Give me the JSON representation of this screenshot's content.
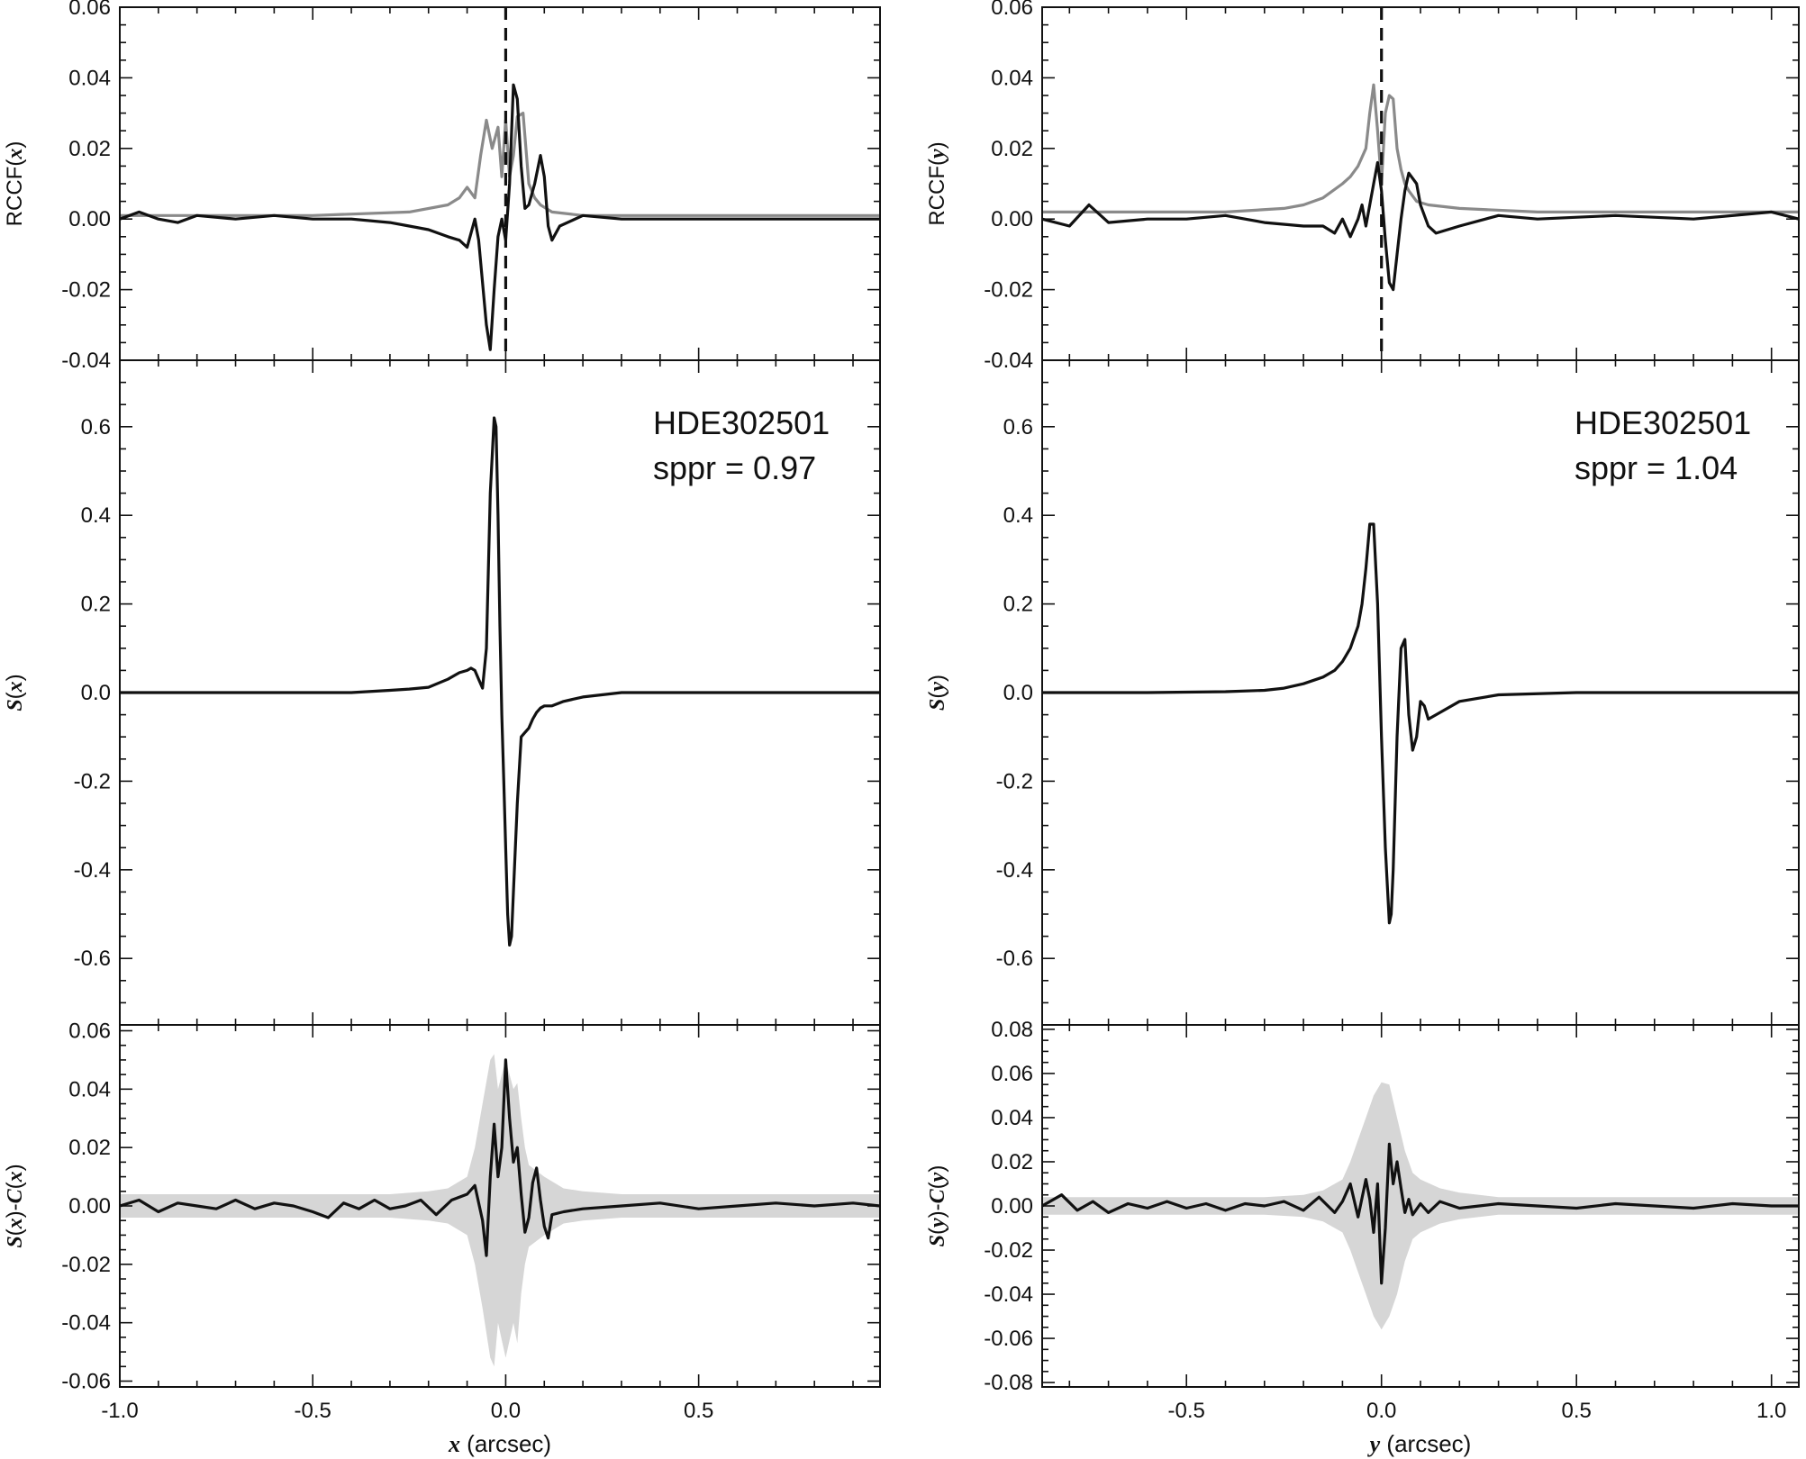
{
  "chart_data": [
    {
      "panel": "top-left",
      "type": "line",
      "ylabel_parts": [
        "RCCF(",
        "x",
        ")"
      ],
      "xlim": [
        -1.0,
        0.97
      ],
      "ylim": [
        -0.04,
        0.06
      ],
      "yticks": [
        "-0.04",
        "-0.02",
        "0.00",
        "0.02",
        "0.04",
        "0.06"
      ],
      "ytick_values": [
        -0.04,
        -0.02,
        0.0,
        0.02,
        0.04,
        0.06
      ],
      "vline_x": 0.0,
      "series": [
        {
          "color": "#8a8a8a",
          "x": [
            -1.0,
            -0.8,
            -0.5,
            -0.25,
            -0.15,
            -0.12,
            -0.1,
            -0.08,
            -0.065,
            -0.05,
            -0.035,
            -0.02,
            -0.01,
            0.0,
            0.01,
            0.02,
            0.03,
            0.045,
            0.06,
            0.075,
            0.09,
            0.12,
            0.2,
            0.5,
            0.97
          ],
          "y": [
            0.001,
            0.001,
            0.001,
            0.002,
            0.004,
            0.006,
            0.009,
            0.006,
            0.018,
            0.028,
            0.02,
            0.026,
            0.012,
            0.028,
            0.012,
            0.018,
            0.029,
            0.03,
            0.01,
            0.006,
            0.004,
            0.002,
            0.001,
            0.001,
            0.001
          ]
        },
        {
          "color": "#111111",
          "x": [
            -1.0,
            -0.95,
            -0.9,
            -0.85,
            -0.8,
            -0.7,
            -0.6,
            -0.5,
            -0.4,
            -0.3,
            -0.25,
            -0.2,
            -0.15,
            -0.12,
            -0.1,
            -0.09,
            -0.08,
            -0.07,
            -0.05,
            -0.04,
            -0.03,
            -0.02,
            -0.01,
            0.0,
            0.01,
            0.02,
            0.03,
            0.04,
            0.05,
            0.06,
            0.075,
            0.09,
            0.1,
            0.11,
            0.12,
            0.14,
            0.2,
            0.3,
            0.5,
            0.7,
            0.97
          ],
          "y": [
            0.0,
            0.002,
            0.0,
            -0.001,
            0.001,
            0.0,
            0.001,
            0.0,
            0.0,
            -0.001,
            -0.002,
            -0.003,
            -0.005,
            -0.006,
            -0.008,
            -0.004,
            0.0,
            -0.006,
            -0.03,
            -0.037,
            -0.02,
            -0.005,
            0.0,
            -0.006,
            0.01,
            0.038,
            0.034,
            0.015,
            0.003,
            0.004,
            0.01,
            0.018,
            0.012,
            -0.002,
            -0.006,
            -0.002,
            0.001,
            0.0,
            0.0,
            0.0,
            0.0
          ]
        }
      ]
    },
    {
      "panel": "top-right",
      "type": "line",
      "ylabel_parts": [
        "RCCF(",
        "y",
        ")"
      ],
      "xlim": [
        -0.87,
        1.07
      ],
      "ylim": [
        -0.04,
        0.06
      ],
      "yticks": [
        "-0.04",
        "-0.02",
        "0.00",
        "0.02",
        "0.04",
        "0.06"
      ],
      "ytick_values": [
        -0.04,
        -0.02,
        0.0,
        0.02,
        0.04,
        0.06
      ],
      "vline_x": 0.0,
      "series": [
        {
          "color": "#8a8a8a",
          "x": [
            -0.87,
            -0.6,
            -0.4,
            -0.25,
            -0.2,
            -0.15,
            -0.1,
            -0.08,
            -0.06,
            -0.04,
            -0.03,
            -0.02,
            -0.01,
            0.0,
            0.01,
            0.02,
            0.03,
            0.04,
            0.05,
            0.06,
            0.07,
            0.09,
            0.12,
            0.2,
            0.4,
            0.7,
            1.07
          ],
          "y": [
            0.002,
            0.002,
            0.002,
            0.003,
            0.004,
            0.006,
            0.01,
            0.012,
            0.015,
            0.02,
            0.03,
            0.038,
            0.025,
            0.01,
            0.03,
            0.035,
            0.034,
            0.02,
            0.014,
            0.01,
            0.008,
            0.005,
            0.004,
            0.003,
            0.002,
            0.002,
            0.002
          ]
        },
        {
          "color": "#111111",
          "x": [
            -0.87,
            -0.8,
            -0.75,
            -0.7,
            -0.6,
            -0.5,
            -0.4,
            -0.3,
            -0.2,
            -0.15,
            -0.12,
            -0.1,
            -0.08,
            -0.06,
            -0.05,
            -0.04,
            -0.03,
            -0.02,
            -0.01,
            0.0,
            0.01,
            0.02,
            0.03,
            0.04,
            0.05,
            0.06,
            0.07,
            0.09,
            0.1,
            0.12,
            0.14,
            0.2,
            0.3,
            0.4,
            0.6,
            0.8,
            1.0,
            1.07
          ],
          "y": [
            0.0,
            -0.002,
            0.004,
            -0.001,
            0.0,
            0.0,
            0.001,
            -0.001,
            -0.002,
            -0.002,
            -0.004,
            0.0,
            -0.005,
            0.0,
            0.004,
            -0.002,
            0.004,
            0.01,
            0.016,
            0.008,
            -0.006,
            -0.018,
            -0.02,
            -0.01,
            0.0,
            0.008,
            0.013,
            0.01,
            0.004,
            -0.002,
            -0.004,
            -0.002,
            0.001,
            0.0,
            0.001,
            0.0,
            0.002,
            0.0
          ]
        }
      ]
    },
    {
      "panel": "middle-left",
      "type": "line",
      "ylabel_parts": [
        "",
        "S",
        "(",
        "x",
        ")"
      ],
      "annotation": [
        "HDE302501",
        "sppr = 0.97"
      ],
      "xlim": [
        -1.0,
        0.97
      ],
      "ylim": [
        -0.75,
        0.75
      ],
      "yticks": [
        "-0.6",
        "-0.4",
        "-0.2",
        "0.0",
        "0.2",
        "0.4",
        "0.6"
      ],
      "ytick_values": [
        -0.6,
        -0.4,
        -0.2,
        0.0,
        0.2,
        0.4,
        0.6
      ],
      "series": [
        {
          "color": "#111111",
          "x": [
            -1.0,
            -0.8,
            -0.6,
            -0.4,
            -0.3,
            -0.25,
            -0.2,
            -0.15,
            -0.12,
            -0.1,
            -0.09,
            -0.08,
            -0.07,
            -0.06,
            -0.05,
            -0.04,
            -0.03,
            -0.025,
            -0.02,
            -0.015,
            -0.01,
            -0.005,
            0.0,
            0.005,
            0.01,
            0.015,
            0.02,
            0.03,
            0.04,
            0.05,
            0.06,
            0.07,
            0.08,
            0.09,
            0.1,
            0.12,
            0.15,
            0.2,
            0.3,
            0.5,
            0.97
          ],
          "y": [
            0.0,
            0.0,
            0.0,
            0.0,
            0.005,
            0.008,
            0.012,
            0.03,
            0.045,
            0.05,
            0.055,
            0.05,
            0.03,
            0.01,
            0.1,
            0.45,
            0.62,
            0.6,
            0.4,
            0.15,
            -0.05,
            -0.2,
            -0.35,
            -0.5,
            -0.57,
            -0.55,
            -0.45,
            -0.25,
            -0.1,
            -0.09,
            -0.08,
            -0.06,
            -0.045,
            -0.035,
            -0.03,
            -0.03,
            -0.02,
            -0.01,
            0.0,
            0.0,
            0.0
          ]
        }
      ]
    },
    {
      "panel": "middle-right",
      "type": "line",
      "ylabel_parts": [
        "",
        "S",
        "(",
        "y",
        ")"
      ],
      "annotation": [
        "HDE302501",
        "sppr = 1.04"
      ],
      "xlim": [
        -0.87,
        1.07
      ],
      "ylim": [
        -0.75,
        0.75
      ],
      "yticks": [
        "-0.6",
        "-0.4",
        "-0.2",
        "0.0",
        "0.2",
        "0.4",
        "0.6"
      ],
      "ytick_values": [
        -0.6,
        -0.4,
        -0.2,
        0.0,
        0.2,
        0.4,
        0.6
      ],
      "series": [
        {
          "color": "#111111",
          "x": [
            -0.87,
            -0.6,
            -0.4,
            -0.3,
            -0.25,
            -0.2,
            -0.15,
            -0.12,
            -0.1,
            -0.08,
            -0.06,
            -0.05,
            -0.04,
            -0.03,
            -0.02,
            -0.01,
            0.0,
            0.01,
            0.02,
            0.025,
            0.03,
            0.04,
            0.05,
            0.06,
            0.07,
            0.08,
            0.09,
            0.1,
            0.11,
            0.12,
            0.14,
            0.2,
            0.3,
            0.5,
            0.8,
            1.07
          ],
          "y": [
            0.0,
            0.0,
            0.002,
            0.005,
            0.01,
            0.02,
            0.035,
            0.05,
            0.07,
            0.1,
            0.15,
            0.2,
            0.28,
            0.38,
            0.38,
            0.2,
            -0.1,
            -0.35,
            -0.52,
            -0.5,
            -0.4,
            -0.1,
            0.1,
            0.12,
            -0.05,
            -0.13,
            -0.1,
            -0.02,
            -0.03,
            -0.06,
            -0.05,
            -0.02,
            -0.005,
            0.0,
            0.0,
            0.0
          ]
        }
      ]
    },
    {
      "panel": "bottom-left",
      "type": "line",
      "ylabel_parts": [
        "",
        "S",
        "(",
        "x",
        ")-",
        "C",
        "(",
        "x",
        ")"
      ],
      "xlabel_parts": [
        "x",
        " (arcsec)"
      ],
      "xlim": [
        -1.0,
        0.97
      ],
      "ylim": [
        -0.062,
        0.062
      ],
      "xticks": [
        "-1.0",
        "-0.5",
        "0.0",
        "0.5"
      ],
      "xtick_values": [
        -1.0,
        -0.5,
        0.0,
        0.5
      ],
      "yticks": [
        "-0.06",
        "-0.04",
        "-0.02",
        "0.00",
        "0.02",
        "0.04",
        "0.06"
      ],
      "ytick_values": [
        -0.06,
        -0.04,
        -0.02,
        0.0,
        0.02,
        0.04,
        0.06
      ],
      "band": {
        "color": "#d6d6d6",
        "x": [
          -1.0,
          -0.3,
          -0.2,
          -0.15,
          -0.1,
          -0.08,
          -0.06,
          -0.04,
          -0.03,
          -0.02,
          -0.01,
          0.0,
          0.01,
          0.02,
          0.03,
          0.04,
          0.05,
          0.06,
          0.08,
          0.1,
          0.15,
          0.2,
          0.3,
          0.97
        ],
        "upper": [
          0.004,
          0.004,
          0.005,
          0.006,
          0.01,
          0.02,
          0.035,
          0.05,
          0.052,
          0.04,
          0.045,
          0.05,
          0.045,
          0.04,
          0.042,
          0.03,
          0.02,
          0.014,
          0.012,
          0.01,
          0.006,
          0.005,
          0.004,
          0.004
        ],
        "lower": [
          -0.004,
          -0.004,
          -0.005,
          -0.006,
          -0.01,
          -0.02,
          -0.035,
          -0.052,
          -0.055,
          -0.04,
          -0.046,
          -0.052,
          -0.046,
          -0.04,
          -0.047,
          -0.03,
          -0.02,
          -0.014,
          -0.012,
          -0.01,
          -0.006,
          -0.005,
          -0.004,
          -0.004
        ]
      },
      "series": [
        {
          "color": "#111111",
          "x": [
            -1.0,
            -0.95,
            -0.9,
            -0.85,
            -0.8,
            -0.75,
            -0.7,
            -0.65,
            -0.6,
            -0.55,
            -0.5,
            -0.46,
            -0.42,
            -0.38,
            -0.34,
            -0.3,
            -0.26,
            -0.22,
            -0.18,
            -0.14,
            -0.1,
            -0.08,
            -0.06,
            -0.05,
            -0.04,
            -0.03,
            -0.02,
            -0.01,
            0.0,
            0.01,
            0.02,
            0.03,
            0.04,
            0.05,
            0.06,
            0.07,
            0.08,
            0.09,
            0.1,
            0.11,
            0.12,
            0.15,
            0.2,
            0.3,
            0.4,
            0.5,
            0.6,
            0.7,
            0.8,
            0.9,
            0.97
          ],
          "y": [
            0.0,
            0.002,
            -0.002,
            0.001,
            0.0,
            -0.001,
            0.002,
            -0.001,
            0.001,
            0.0,
            -0.002,
            -0.004,
            0.001,
            -0.001,
            0.002,
            -0.001,
            0.0,
            0.002,
            -0.003,
            0.002,
            0.004,
            0.007,
            -0.005,
            -0.017,
            0.01,
            0.028,
            0.01,
            0.02,
            0.05,
            0.03,
            0.015,
            0.02,
            0.004,
            -0.009,
            -0.004,
            0.008,
            0.013,
            0.002,
            -0.007,
            -0.011,
            -0.003,
            -0.002,
            -0.001,
            0.0,
            0.001,
            -0.001,
            0.0,
            0.001,
            0.0,
            0.001,
            0.0
          ]
        }
      ]
    },
    {
      "panel": "bottom-right",
      "type": "line",
      "ylabel_parts": [
        "",
        "S",
        "(",
        "y",
        ")-",
        "C",
        "(",
        "y",
        ")"
      ],
      "xlabel_parts": [
        "y",
        " (arcsec)"
      ],
      "xlim": [
        -0.87,
        1.07
      ],
      "ylim": [
        -0.082,
        0.082
      ],
      "xticks": [
        "-0.5",
        "0.0",
        "0.5",
        "1.0"
      ],
      "xtick_values": [
        -0.5,
        0.0,
        0.5,
        1.0
      ],
      "yticks": [
        "-0.08",
        "-0.06",
        "-0.04",
        "-0.02",
        "0.00",
        "0.02",
        "0.04",
        "0.06",
        "0.08"
      ],
      "ytick_values": [
        -0.08,
        -0.06,
        -0.04,
        -0.02,
        0.0,
        0.02,
        0.04,
        0.06,
        0.08
      ],
      "band": {
        "color": "#d6d6d6",
        "x": [
          -0.87,
          -0.3,
          -0.2,
          -0.15,
          -0.1,
          -0.08,
          -0.06,
          -0.04,
          -0.02,
          0.0,
          0.02,
          0.04,
          0.06,
          0.08,
          0.1,
          0.15,
          0.2,
          0.3,
          1.07
        ],
        "upper": [
          0.004,
          0.004,
          0.005,
          0.007,
          0.012,
          0.02,
          0.03,
          0.04,
          0.05,
          0.056,
          0.055,
          0.04,
          0.025,
          0.015,
          0.012,
          0.008,
          0.006,
          0.004,
          0.004
        ],
        "lower": [
          -0.004,
          -0.004,
          -0.005,
          -0.007,
          -0.012,
          -0.02,
          -0.03,
          -0.04,
          -0.05,
          -0.056,
          -0.05,
          -0.04,
          -0.025,
          -0.015,
          -0.012,
          -0.008,
          -0.006,
          -0.004,
          -0.004
        ]
      },
      "series": [
        {
          "color": "#111111",
          "x": [
            -0.87,
            -0.82,
            -0.78,
            -0.74,
            -0.7,
            -0.65,
            -0.6,
            -0.55,
            -0.5,
            -0.45,
            -0.4,
            -0.35,
            -0.3,
            -0.25,
            -0.2,
            -0.16,
            -0.12,
            -0.1,
            -0.08,
            -0.06,
            -0.04,
            -0.03,
            -0.02,
            -0.01,
            0.0,
            0.01,
            0.02,
            0.03,
            0.04,
            0.05,
            0.06,
            0.07,
            0.08,
            0.1,
            0.12,
            0.15,
            0.2,
            0.3,
            0.4,
            0.5,
            0.6,
            0.7,
            0.8,
            0.9,
            1.0,
            1.07
          ],
          "y": [
            0.0,
            0.005,
            -0.002,
            0.002,
            -0.003,
            0.001,
            -0.001,
            0.002,
            -0.001,
            0.001,
            -0.002,
            0.001,
            0.0,
            0.002,
            -0.002,
            0.004,
            -0.003,
            0.002,
            0.01,
            -0.005,
            0.012,
            0.003,
            -0.012,
            0.01,
            -0.035,
            -0.01,
            0.028,
            0.01,
            0.02,
            0.008,
            -0.003,
            0.003,
            -0.004,
            0.001,
            -0.003,
            0.002,
            -0.001,
            0.001,
            0.0,
            -0.001,
            0.001,
            0.0,
            -0.001,
            0.001,
            0.0,
            0.0
          ]
        }
      ]
    }
  ]
}
